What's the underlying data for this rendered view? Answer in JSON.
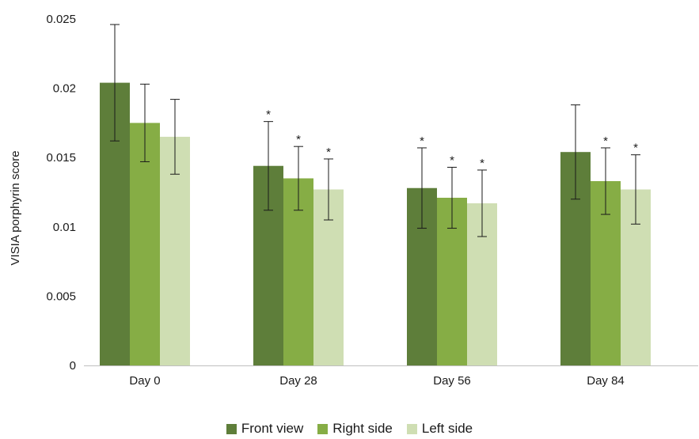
{
  "chart_data": {
    "type": "bar",
    "title": "",
    "xlabel": "",
    "ylabel": "VISIA porphyrin score",
    "ylim": [
      0,
      0.025
    ],
    "yticks": [
      "0",
      "0.005",
      "0.01",
      "0.015",
      "0.02",
      "0.025"
    ],
    "grid": false,
    "legend_position": "bottom",
    "categories": [
      "Day 0",
      "Day 28",
      "Day 56",
      "Day 84"
    ],
    "series": [
      {
        "name": "Front view",
        "color": "#5e7e3a",
        "values": [
          0.0204,
          0.0144,
          0.0128,
          0.0154
        ],
        "error": [
          0.0042,
          0.0032,
          0.0029,
          0.0034
        ],
        "significant": [
          false,
          true,
          true,
          false
        ]
      },
      {
        "name": "Right side",
        "color": "#86ad45",
        "values": [
          0.0175,
          0.0135,
          0.0121,
          0.0133
        ],
        "error": [
          0.0028,
          0.0023,
          0.0022,
          0.0024
        ],
        "significant": [
          false,
          true,
          true,
          true
        ]
      },
      {
        "name": "Left side",
        "color": "#cfdeb3",
        "values": [
          0.0165,
          0.0127,
          0.0117,
          0.0127
        ],
        "error": [
          0.0027,
          0.0022,
          0.0024,
          0.0025
        ],
        "significant": [
          false,
          true,
          true,
          true
        ]
      }
    ],
    "annotation_symbol": "*"
  }
}
